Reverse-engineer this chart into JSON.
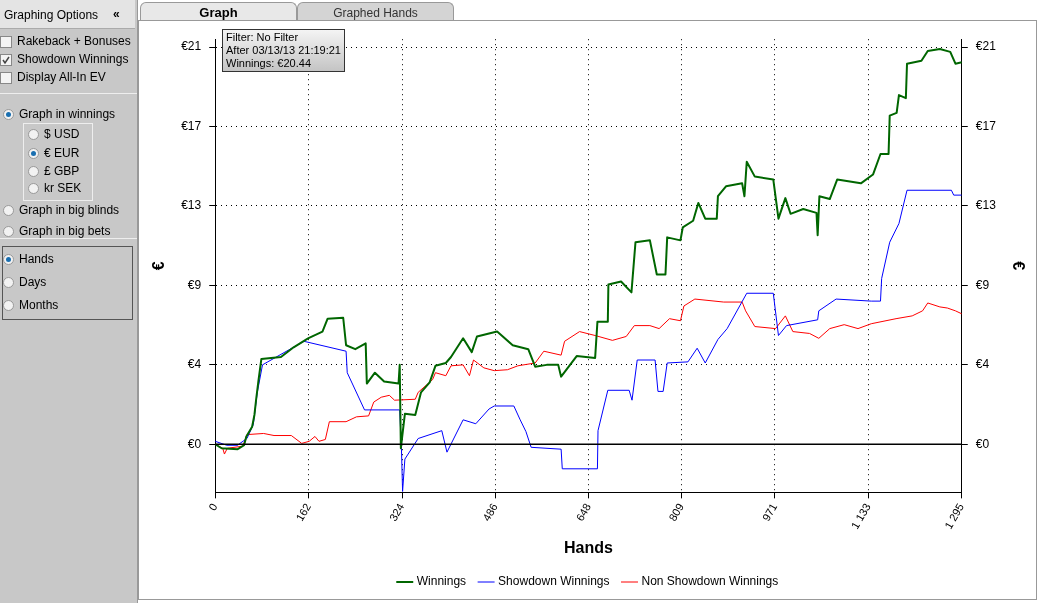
{
  "chart_data": {
    "type": "line",
    "xlabel": "Hands",
    "ylabel": "€",
    "y2label": "€",
    "xlim": [
      0,
      1295
    ],
    "xticks": [
      0,
      162,
      324,
      486,
      648,
      809,
      971,
      {
        "value": 1133,
        "label": "1 133"
      },
      {
        "value": 1295,
        "label": "1 295"
      }
    ],
    "ylim": [
      -2.57,
      21.67
    ],
    "yticks": [
      {
        "value": 0,
        "label": "€0"
      },
      {
        "value": 4.25,
        "label": "€4"
      },
      {
        "value": 8.5,
        "label": "€9"
      },
      {
        "value": 12.75,
        "label": "€13"
      },
      {
        "value": 17,
        "label": "€17"
      },
      {
        "value": 21.25,
        "label": "€21"
      }
    ],
    "y2lim": [
      -2.57,
      21.67
    ],
    "y2ticks": [
      {
        "value": 0,
        "label": "€0"
      },
      {
        "value": 4.25,
        "label": "€4"
      },
      {
        "value": 8.5,
        "label": "€9"
      },
      {
        "value": 12.75,
        "label": "€13"
      },
      {
        "value": 17,
        "label": "€17"
      },
      {
        "value": 21.25,
        "label": "€21"
      }
    ],
    "grid": true,
    "legend": "bottom",
    "marker": "none",
    "ref_lines": [
      {
        "axis": "y",
        "value": 0,
        "color": "#000000"
      }
    ],
    "annotations": [
      "Filter: No Filter",
      "After 03/13/13 21:19:21",
      "Winnings: €20.44",
      "Graph",
      "Graphed Hands",
      "Graphing Options",
      "«",
      "Rakeback + Bonuses",
      "Showdown Winnings",
      "Display All-In EV",
      "Graph in winnings",
      "$ USD",
      "€ EUR",
      "£ GBP",
      "kr SEK",
      "Graph in big blinds",
      "Graph in big bets",
      "Hands",
      "Days",
      "Months"
    ],
    "series": [
      {
        "name": "Winnings",
        "color": "#006600",
        "x": [
          0,
          11,
          39,
          50,
          54,
          64,
          68,
          71,
          75,
          80,
          114,
          136,
          161,
          186,
          195,
          222,
          227,
          243,
          261,
          263,
          277,
          293,
          318,
          320,
          322,
          329,
          347,
          357,
          372,
          382,
          400,
          409,
          430,
          445,
          454,
          489,
          516,
          543,
          555,
          575,
          595,
          600,
          627,
          659,
          663,
          681,
          682,
          704,
          722,
          729,
          754,
          766,
          781,
          784,
          807,
          811,
          829,
          838,
          850,
          870,
          872,
          886,
          914,
          918,
          922,
          936,
          968,
          977,
          989,
          998,
          1020,
          1043,
          1045,
          1048,
          1066,
          1079,
          1120,
          1141,
          1154,
          1168,
          1170,
          1182,
          1186,
          1198,
          1200,
          1225,
          1236,
          1257,
          1275,
          1284,
          1295
        ],
        "values": [
          0,
          -0.21,
          -0.26,
          -0.05,
          0.42,
          0.94,
          1.57,
          2.41,
          3.41,
          4.56,
          4.67,
          5.19,
          5.67,
          6.03,
          6.72,
          6.77,
          5.3,
          5.09,
          5.4,
          3.25,
          3.83,
          3.36,
          3.25,
          4.25,
          -0.21,
          1.63,
          1.57,
          2.78,
          3.31,
          4.2,
          4.35,
          4.67,
          5.67,
          4.93,
          5.77,
          6.03,
          5.3,
          5.09,
          4.15,
          4.25,
          4.25,
          3.62,
          4.72,
          4.62,
          6.56,
          6.56,
          8.55,
          8.71,
          8.13,
          10.81,
          10.91,
          9.08,
          9.08,
          11.07,
          10.91,
          11.6,
          11.96,
          12.91,
          12.07,
          12.07,
          13.27,
          13.8,
          13.96,
          13.27,
          15.11,
          14.32,
          14.17,
          12.07,
          13.17,
          12.33,
          12.59,
          12.38,
          11.18,
          13.27,
          13.12,
          14.17,
          13.96,
          14.43,
          15.53,
          15.53,
          17.58,
          17.73,
          18.68,
          18.52,
          20.36,
          20.52,
          21.04,
          21.15,
          20.99,
          20.36,
          20.44
        ]
      },
      {
        "name": "Showdown Winnings",
        "color": "#0000ff",
        "x": [
          0,
          20,
          39,
          43,
          55,
          66,
          73,
          82,
          127,
          154,
          227,
          229,
          259,
          320,
          323,
          325,
          329,
          352,
          393,
          402,
          430,
          452,
          475,
          484,
          518,
          529,
          539,
          548,
          600,
          602,
          663,
          664,
          681,
          718,
          723,
          732,
          763,
          768,
          777,
          784,
          820,
          836,
          850,
          872,
          888,
          922,
          968,
          977,
          991,
          1045,
          1047,
          1077,
          1138,
          1154,
          1156,
          1170,
          1186,
          1200,
          1277,
          1281,
          1295
        ],
        "values": [
          0.16,
          -0.05,
          -0.05,
          0.05,
          0.31,
          1.05,
          2.78,
          4.25,
          5.04,
          5.51,
          4.98,
          3.83,
          1.84,
          1.84,
          -0.21,
          -2.52,
          -0.79,
          0.31,
          0.73,
          -0.42,
          1.31,
          1.1,
          1.89,
          2.05,
          2.05,
          1.31,
          0.68,
          -0.16,
          -0.26,
          -1.31,
          -1.31,
          0.73,
          2.89,
          2.89,
          2.36,
          4.51,
          4.51,
          2.83,
          2.83,
          4.35,
          4.41,
          5.14,
          4.35,
          5.61,
          6.19,
          8.08,
          8.08,
          5.82,
          6.35,
          6.66,
          7.14,
          7.77,
          7.66,
          7.66,
          8.87,
          10.81,
          11.81,
          13.59,
          13.59,
          13.33,
          13.33
        ]
      },
      {
        "name": "Non Showdown Winnings",
        "color": "#ff0000",
        "x": [
          0,
          13,
          16,
          21,
          48,
          55,
          84,
          102,
          132,
          150,
          163,
          173,
          180,
          191,
          198,
          227,
          245,
          266,
          275,
          288,
          302,
          311,
          347,
          352,
          377,
          382,
          400,
          409,
          430,
          441,
          448,
          466,
          484,
          507,
          525,
          555,
          570,
          600,
          606,
          632,
          659,
          689,
          713,
          727,
          754,
          770,
          788,
          807,
          813,
          832,
          882,
          914,
          920,
          936,
          972,
          989,
          1002,
          1031,
          1047,
          1066,
          1091,
          1115,
          1138,
          1181,
          1209,
          1227,
          1236,
          1257,
          1270,
          1284,
          1295
        ],
        "values": [
          0,
          -0.21,
          -0.52,
          -0.21,
          -0.1,
          0.52,
          0.58,
          0.47,
          0.47,
          0.05,
          0.16,
          0.42,
          0.16,
          0.26,
          1.21,
          1.21,
          1.47,
          1.52,
          2.26,
          2.52,
          2.62,
          2.36,
          2.41,
          2.78,
          3.46,
          3.83,
          3.67,
          4.2,
          4.25,
          3.67,
          4.51,
          4.09,
          3.94,
          3.99,
          4.2,
          4.35,
          4.98,
          4.77,
          5.51,
          6.03,
          5.82,
          5.56,
          5.77,
          6.35,
          6.35,
          6.19,
          6.72,
          6.61,
          7.4,
          7.77,
          7.61,
          7.61,
          7.14,
          6.3,
          6.19,
          6.87,
          6.03,
          5.93,
          5.67,
          6.19,
          6.4,
          6.19,
          6.45,
          6.72,
          6.87,
          7.14,
          7.56,
          7.35,
          7.29,
          7.14,
          6.98
        ]
      }
    ]
  }
}
